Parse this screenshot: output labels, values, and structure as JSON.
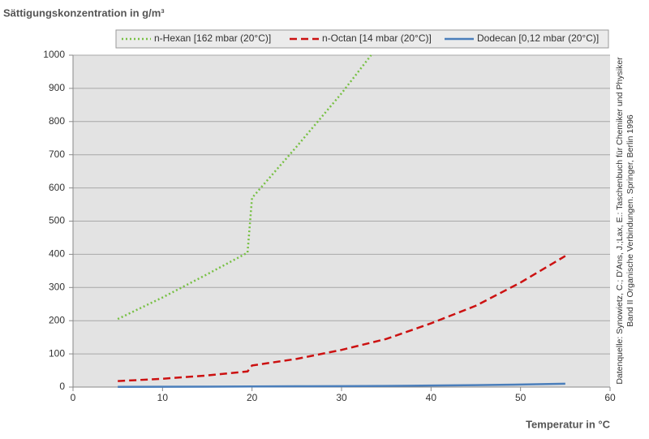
{
  "chart_data": {
    "type": "line",
    "title": "Sättigungskonzentration in g/m³",
    "x_label": "Temperatur in °C",
    "annotation": [
      "Datenquelle: Synowietz, C.; D'Ans, J.;Lax, E.: Taschenbuch für Chemiker und Physiker",
      "Band II Organische Verbindungen. Springer, Berlin 1996"
    ],
    "series": [
      {
        "name": "n-Hexan [162 mbar (20°C)]",
        "color": "#77c043",
        "dash": "dotted",
        "x": [
          5,
          10,
          15,
          19.5,
          20,
          25,
          30,
          33.3
        ],
        "values": [
          205,
          270,
          340,
          405,
          570,
          725,
          885,
          1000
        ]
      },
      {
        "name": "n-Octan  [14 mbar (20°C)]",
        "color": "#cc1111",
        "dash": "dashed",
        "x": [
          5,
          10,
          15,
          19.5,
          20,
          25,
          30,
          35,
          40,
          45,
          50,
          55
        ],
        "values": [
          18,
          25,
          35,
          47,
          65,
          85,
          112,
          145,
          192,
          245,
          315,
          395
        ]
      },
      {
        "name": "Dodecan [0,12 mbar (20°C)]",
        "color": "#4a7ebb",
        "dash": "solid",
        "x": [
          5,
          10,
          15,
          20,
          25,
          30,
          35,
          40,
          45,
          50,
          55
        ],
        "values": [
          0.6,
          0.9,
          1.3,
          1.8,
          2.3,
          2.8,
          3.5,
          4.5,
          5.8,
          7.5,
          10
        ]
      }
    ],
    "xlim": [
      0,
      60
    ],
    "xticks": [
      0,
      10,
      20,
      30,
      40,
      50,
      60
    ],
    "ylim": [
      0,
      1000
    ],
    "yticks": [
      0,
      100,
      200,
      300,
      400,
      500,
      600,
      700,
      800,
      900,
      1000
    ],
    "grid": true,
    "legend": "top"
  }
}
